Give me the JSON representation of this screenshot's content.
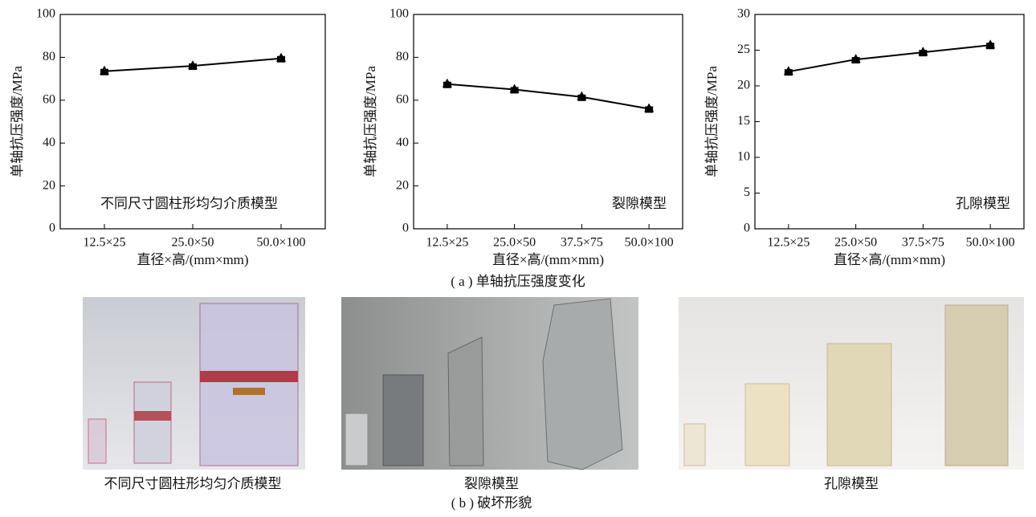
{
  "chart_data": [
    {
      "type": "line",
      "categories": [
        "12.5×25",
        "25.0×50",
        "50.0×100"
      ],
      "values": [
        73.5,
        76,
        79.5
      ],
      "color": "#000000",
      "ylim": [
        0,
        100
      ],
      "yticks": [
        0,
        20,
        40,
        60,
        80,
        100
      ],
      "y_label": "单轴抗压强度/MPa",
      "x_label": "直径×高/(mm×mm)",
      "annotation": "不同尺寸圆柱形均匀介质模型"
    },
    {
      "type": "line",
      "categories": [
        "12.5×25",
        "25.0×50",
        "37.5×75",
        "50.0×100"
      ],
      "values": [
        67.5,
        65,
        61.5,
        56
      ],
      "color": "#000000",
      "ylim": [
        0,
        100
      ],
      "yticks": [
        0,
        20,
        40,
        60,
        80,
        100
      ],
      "y_label": "单轴抗压强度/MPa",
      "x_label": "直径×高/(mm×mm)",
      "annotation": "裂隙模型"
    },
    {
      "type": "line",
      "categories": [
        "12.5×25",
        "25.0×50",
        "37.5×75",
        "50.0×100"
      ],
      "values": [
        22,
        23.7,
        24.7,
        25.7
      ],
      "color": "#000000",
      "ylim": [
        0,
        30
      ],
      "yticks": [
        0,
        5,
        10,
        15,
        20,
        25,
        30
      ],
      "y_label": "单轴抗压强度/MPa",
      "x_label": "直径×高/(mm×mm)",
      "annotation": "孔隙模型"
    }
  ],
  "captions": {
    "a": "( a ) 单轴抗压强度变化",
    "b": "( b ) 破坏形貌"
  },
  "photos": [
    {
      "label": "不同尺寸圆柱形均匀介质模型"
    },
    {
      "label": "裂隙模型"
    },
    {
      "label": "孔隙模型"
    }
  ]
}
